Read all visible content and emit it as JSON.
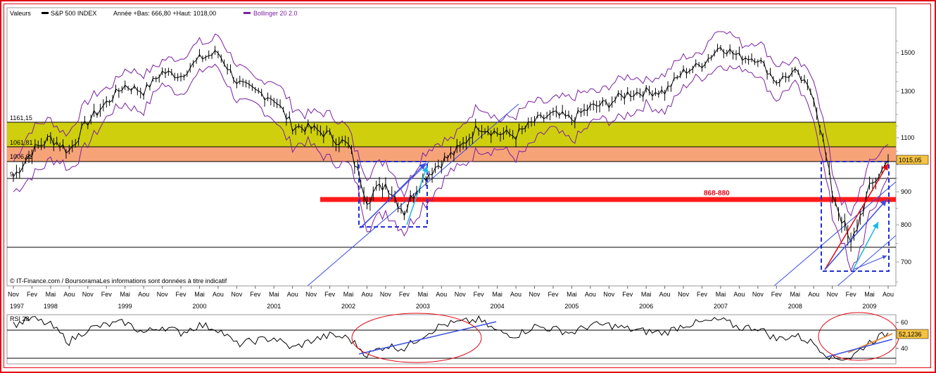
{
  "legend": {
    "valeurs_label": "Valeurs",
    "index_label": "S&P 500 INDEX",
    "year_range_label": "Année +Bas: 666,80 +Haut: 1018,00",
    "bollinger_label": "Bollinger 20 2.0"
  },
  "attribution": "© IT-Finance.com / BoursoramaLes informations sont données à titre indicatif",
  "colors": {
    "frame": "#e30613",
    "price": "#000000",
    "bollinger": "#7b1fa2",
    "yellow_band": "#cccc00",
    "orange_band": "#f6a378",
    "support_line": "#ff1a1a",
    "trendline": "#3b4fe0",
    "cyan_arrow": "#19b8e6",
    "orange_trend": "#e67e22",
    "last_price_box": "#f5c242"
  },
  "price_levels": {
    "y_axis_ticks": [
      "1500",
      "1300",
      "1100",
      "900",
      "800",
      "700"
    ],
    "band_labels": [
      "1161,15",
      "1061,81",
      "1006,62",
      "9"
    ],
    "support_zone_label": "868-880",
    "last_price_label": "1015,05"
  },
  "x_axis": {
    "months": [
      "Nov",
      "Fev",
      "Mai",
      "Aou",
      "Nov",
      "Fev",
      "Mai",
      "Aou",
      "Nov",
      "Fev",
      "Mai",
      "Aou",
      "Nov",
      "Fev",
      "Mai",
      "Aou",
      "Nov",
      "Fev",
      "Mai",
      "Aou",
      "Nov",
      "Fev",
      "Mai",
      "Aou",
      "Nov",
      "Fev",
      "Mai",
      "Aou",
      "Nov",
      "Fev",
      "Mai",
      "Aou",
      "Nov",
      "Fev",
      "Mai",
      "Aou",
      "Nov",
      "Fev",
      "Mai",
      "Aou",
      "Nov",
      "Fev",
      "Mai",
      "Aou",
      "Nov",
      "Fev",
      "Mai",
      "Aou"
    ],
    "years": [
      "1997",
      "1998",
      "1999",
      "2000",
      "2001",
      "2002",
      "2003",
      "2004",
      "2005",
      "2006",
      "2007",
      "2008",
      "2009"
    ]
  },
  "rsi_panel": {
    "label": "RSI 28",
    "y_axis_ticks": [
      "60",
      "40"
    ],
    "last_value_label": "52,1236"
  },
  "chart_data": [
    {
      "type": "line",
      "title": "S&P 500 INDEX",
      "description_series": "Bollinger 20 2.0",
      "x": [
        "1997-11",
        "1998-02",
        "1998-05",
        "1998-08",
        "1998-11",
        "1999-02",
        "1999-05",
        "1999-08",
        "1999-11",
        "2000-02",
        "2000-05",
        "2000-08",
        "2000-11",
        "2001-02",
        "2001-05",
        "2001-08",
        "2001-11",
        "2002-02",
        "2002-05",
        "2002-08",
        "2002-11",
        "2003-02",
        "2003-05",
        "2003-08",
        "2003-11",
        "2004-02",
        "2004-05",
        "2004-08",
        "2004-11",
        "2005-02",
        "2005-05",
        "2005-08",
        "2005-11",
        "2006-02",
        "2006-05",
        "2006-08",
        "2006-11",
        "2007-02",
        "2007-05",
        "2007-08",
        "2007-11",
        "2008-02",
        "2008-05",
        "2008-08",
        "2008-11",
        "2009-02",
        "2009-05",
        "2009-08"
      ],
      "series": [
        {
          "name": "S&P 500 INDEX",
          "values": [
            955,
            1050,
            1100,
            1050,
            1170,
            1250,
            1330,
            1300,
            1400,
            1380,
            1470,
            1500,
            1350,
            1300,
            1270,
            1150,
            1140,
            1110,
            1070,
            880,
            930,
            840,
            950,
            1010,
            1060,
            1150,
            1120,
            1110,
            1170,
            1200,
            1180,
            1230,
            1250,
            1290,
            1300,
            1300,
            1400,
            1440,
            1530,
            1480,
            1470,
            1350,
            1400,
            1280,
            900,
            740,
            910,
            1015
          ]
        }
      ],
      "reference_levels": [
        1161.15,
        1061.81,
        1006.62
      ],
      "support_zone": [
        868,
        880
      ],
      "last_value": 1015.05,
      "ylim": [
        640,
        1590
      ],
      "grid": false
    },
    {
      "type": "line",
      "title": "RSI 28",
      "x": [
        "1997-11",
        "1998-02",
        "1998-05",
        "1998-08",
        "1998-11",
        "1999-02",
        "1999-05",
        "1999-08",
        "1999-11",
        "2000-02",
        "2000-05",
        "2000-08",
        "2000-11",
        "2001-02",
        "2001-05",
        "2001-08",
        "2001-11",
        "2002-02",
        "2002-05",
        "2002-08",
        "2002-11",
        "2003-02",
        "2003-05",
        "2003-08",
        "2003-11",
        "2004-02",
        "2004-05",
        "2004-08",
        "2004-11",
        "2005-02",
        "2005-05",
        "2005-08",
        "2005-11",
        "2006-02",
        "2006-05",
        "2006-08",
        "2006-11",
        "2007-02",
        "2007-05",
        "2007-08",
        "2007-11",
        "2008-02",
        "2008-05",
        "2008-08",
        "2008-11",
        "2009-02",
        "2009-05",
        "2009-08"
      ],
      "series": [
        {
          "name": "RSI 28",
          "values": [
            58,
            63,
            58,
            45,
            55,
            58,
            60,
            52,
            57,
            52,
            58,
            55,
            43,
            46,
            48,
            40,
            46,
            50,
            48,
            35,
            42,
            40,
            50,
            58,
            60,
            62,
            53,
            50,
            57,
            55,
            52,
            58,
            58,
            55,
            53,
            52,
            58,
            60,
            62,
            56,
            56,
            47,
            50,
            44,
            32,
            33,
            45,
            52
          ]
        }
      ],
      "y_ticks": [
        60,
        40
      ],
      "last_value": 52.1236,
      "ylim": [
        28,
        66
      ]
    }
  ]
}
